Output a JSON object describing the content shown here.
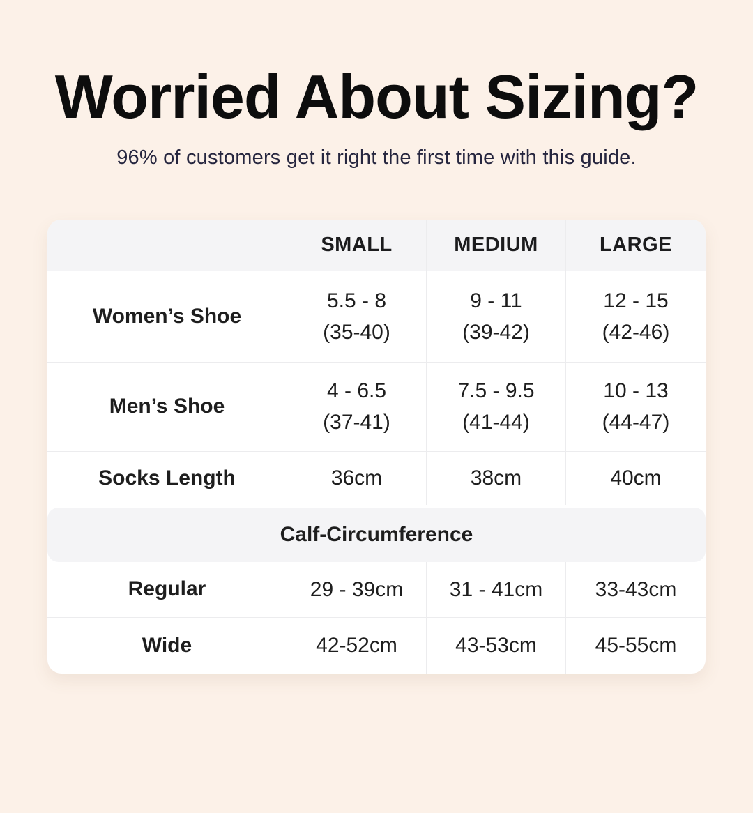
{
  "header": {
    "title": "Worried About Sizing?",
    "subtitle": "96% of customers get it right the first time with this guide."
  },
  "colors": {
    "background": "#fcf1e8",
    "card": "#ffffff",
    "band": "#f4f4f6",
    "divider": "#ececee",
    "title_text": "#0d0d0d",
    "subtitle_text": "#26263f",
    "table_text": "#1e1e1e"
  },
  "table": {
    "columns": [
      "",
      "SMALL",
      "MEDIUM",
      "LARGE"
    ],
    "rows": [
      {
        "label": "Women’s Shoe",
        "cells": [
          {
            "line1": "5.5 - 8",
            "line2": "(35-40)"
          },
          {
            "line1": "9 - 11",
            "line2": "(39-42)"
          },
          {
            "line1": "12 - 15",
            "line2": "(42-46)"
          }
        ]
      },
      {
        "label": "Men’s Shoe",
        "cells": [
          {
            "line1": "4 - 6.5",
            "line2": "(37-41)"
          },
          {
            "line1": "7.5 - 9.5",
            "line2": "(41-44)"
          },
          {
            "line1": "10 - 13",
            "line2": "(44-47)"
          }
        ]
      },
      {
        "label": "Socks Length",
        "cells": [
          {
            "line1": "36cm"
          },
          {
            "line1": "38cm"
          },
          {
            "line1": "40cm"
          }
        ]
      }
    ],
    "section": {
      "label": "Calf-Circumference",
      "rows": [
        {
          "label": "Regular",
          "cells": [
            {
              "line1": "29 - 39cm"
            },
            {
              "line1": "31 - 41cm"
            },
            {
              "line1": "33-43cm"
            }
          ]
        },
        {
          "label": "Wide",
          "cells": [
            {
              "line1": "42-52cm"
            },
            {
              "line1": "43-53cm"
            },
            {
              "line1": "45-55cm"
            }
          ]
        }
      ]
    }
  },
  "chart_data": {
    "type": "table",
    "title": "Worried About Sizing?",
    "subtitle": "96% of customers get it right the first time with this guide.",
    "columns": [
      "",
      "SMALL",
      "MEDIUM",
      "LARGE"
    ],
    "rows": [
      [
        "Women’s Shoe",
        "5.5 - 8 (35-40)",
        "9 - 11 (39-42)",
        "12 - 15 (42-46)"
      ],
      [
        "Men’s Shoe",
        "4 - 6.5 (37-41)",
        "7.5 - 9.5 (41-44)",
        "10 - 13 (44-47)"
      ],
      [
        "Socks Length",
        "36cm",
        "38cm",
        "40cm"
      ],
      [
        "Calf-Circumference (section header)",
        "",
        "",
        ""
      ],
      [
        "Regular",
        "29 - 39cm",
        "31 - 41cm",
        "33-43cm"
      ],
      [
        "Wide",
        "42-52cm",
        "43-53cm",
        "45-55cm"
      ]
    ]
  }
}
